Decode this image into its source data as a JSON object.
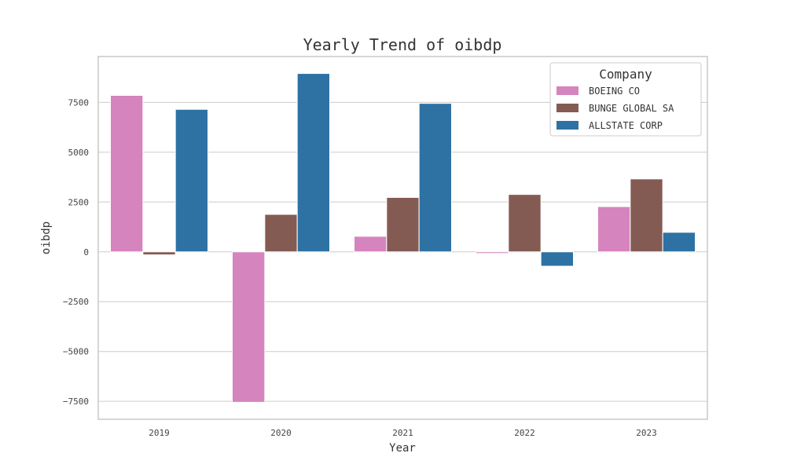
{
  "chart_data": {
    "type": "bar",
    "title": "Yearly Trend of oibdp",
    "xlabel": "Year",
    "ylabel": "oibdp",
    "categories": [
      "2019",
      "2020",
      "2021",
      "2022",
      "2023"
    ],
    "series": [
      {
        "name": "BOEING CO",
        "color": "#d684be",
        "values": [
          7850,
          -7550,
          780,
          -80,
          2270
        ]
      },
      {
        "name": "BUNGE GLOBAL SA",
        "color": "#845b53",
        "values": [
          -150,
          1880,
          2730,
          2880,
          3660
        ]
      },
      {
        "name": "ALLSTATE CORP",
        "color": "#2e72a4",
        "values": [
          7150,
          8950,
          7450,
          -720,
          980
        ]
      }
    ],
    "ylim": [
      -8400,
      9800
    ],
    "yticks": [
      -7500,
      -5000,
      -2500,
      0,
      2500,
      5000,
      7500
    ],
    "ytick_labels": [
      "−7500",
      "−5000",
      "−2500",
      "0",
      "2500",
      "5000",
      "7500"
    ],
    "grid": "horizontal",
    "legend": {
      "title": "Company",
      "placement": "top-right"
    }
  }
}
